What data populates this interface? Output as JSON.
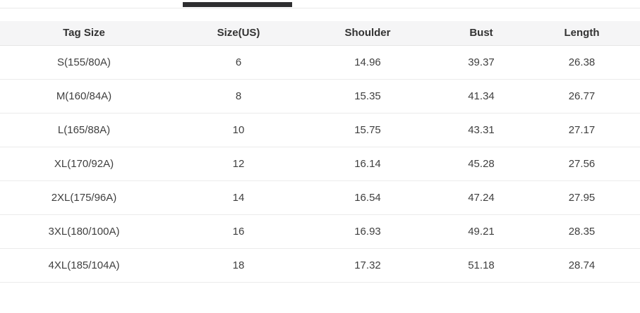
{
  "colors": {
    "active_tab_indicator": "#2e2e30",
    "header_background": "#f5f5f6",
    "row_divider": "#ebebeb",
    "strip_divider": "#e9e9e9",
    "header_text": "#333333",
    "body_text": "#3f3f3f"
  },
  "table": {
    "headers": [
      "Tag Size",
      "Size(US)",
      "Shoulder",
      "Bust",
      "Length"
    ],
    "rows": [
      [
        "S(155/80A)",
        "6",
        "14.96",
        "39.37",
        "26.38"
      ],
      [
        "M(160/84A)",
        "8",
        "15.35",
        "41.34",
        "26.77"
      ],
      [
        "L(165/88A)",
        "10",
        "15.75",
        "43.31",
        "27.17"
      ],
      [
        "XL(170/92A)",
        "12",
        "16.14",
        "45.28",
        "27.56"
      ],
      [
        "2XL(175/96A)",
        "14",
        "16.54",
        "47.24",
        "27.95"
      ],
      [
        "3XL(180/100A)",
        "16",
        "16.93",
        "49.21",
        "28.35"
      ],
      [
        "4XL(185/104A)",
        "18",
        "17.32",
        "51.18",
        "28.74"
      ]
    ]
  }
}
